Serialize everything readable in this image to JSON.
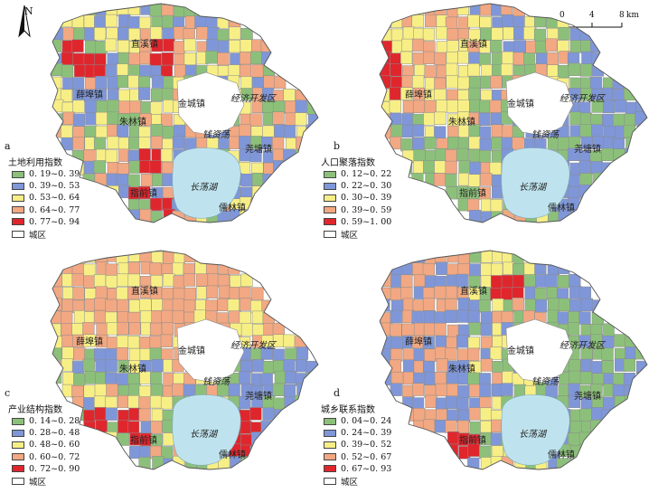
{
  "north_label": "N",
  "scale": {
    "ticks": [
      "0",
      "4",
      "8"
    ],
    "unit": "km"
  },
  "colors": {
    "green": "#8cc07a",
    "blue": "#7f97d8",
    "yellow": "#f7ef86",
    "orange": "#f2a882",
    "red": "#e0262d",
    "white": "#ffffff",
    "lake": "#bfe3ee",
    "boundary": "#8a8a8a"
  },
  "place_names": {
    "zhijing": "直溪镇",
    "xuebu": "薛埠镇",
    "jincheng": "金城镇",
    "econ_zone": "经济开发区",
    "zhulin": "朱林镇",
    "qianzidang": "钱资荡",
    "yaotang": "尧塘镇",
    "zhiqian": "指前镇",
    "changdang": "长荡湖",
    "rulin": "儒林镇"
  },
  "panels": [
    {
      "letter": "a",
      "legend_title": "土地利用指数",
      "classes": [
        {
          "label": "0. 19~0. 39",
          "color": "#8cc07a"
        },
        {
          "label": "0. 39~0. 53",
          "color": "#7f97d8"
        },
        {
          "label": "0. 53~0. 64",
          "color": "#f7ef86"
        },
        {
          "label": "0. 64~0. 77",
          "color": "#f2a882"
        },
        {
          "label": "0. 77~0. 94",
          "color": "#e0262d"
        },
        {
          "label": "城区",
          "color": "#ffffff"
        }
      ]
    },
    {
      "letter": "b",
      "legend_title": "人口聚落指数",
      "classes": [
        {
          "label": "0. 12~0. 22",
          "color": "#8cc07a"
        },
        {
          "label": "0. 22~0. 30",
          "color": "#7f97d8"
        },
        {
          "label": "0. 30~0. 39",
          "color": "#f7ef86"
        },
        {
          "label": "0. 39~0. 59",
          "color": "#f2a882"
        },
        {
          "label": "0. 59~1. 00",
          "color": "#e0262d"
        },
        {
          "label": "城区",
          "color": "#ffffff"
        }
      ]
    },
    {
      "letter": "c",
      "legend_title": "产业结构指数",
      "classes": [
        {
          "label": "0. 14~0. 28",
          "color": "#8cc07a"
        },
        {
          "label": "0. 28~0. 48",
          "color": "#7f97d8"
        },
        {
          "label": "0. 48~0. 60",
          "color": "#f7ef86"
        },
        {
          "label": "0. 60~0. 72",
          "color": "#f2a882"
        },
        {
          "label": "0. 72~0. 90",
          "color": "#e0262d"
        },
        {
          "label": "城区",
          "color": "#ffffff"
        }
      ]
    },
    {
      "letter": "d",
      "legend_title": "城乡联系指数",
      "classes": [
        {
          "label": "0. 04~0. 24",
          "color": "#8cc07a"
        },
        {
          "label": "0. 24~0. 39",
          "color": "#7f97d8"
        },
        {
          "label": "0. 39~0. 52",
          "color": "#f7ef86"
        },
        {
          "label": "0. 52~0. 67",
          "color": "#f2a882"
        },
        {
          "label": "0. 67~0. 93",
          "color": "#e0262d"
        },
        {
          "label": "城区",
          "color": "#ffffff"
        }
      ]
    }
  ]
}
